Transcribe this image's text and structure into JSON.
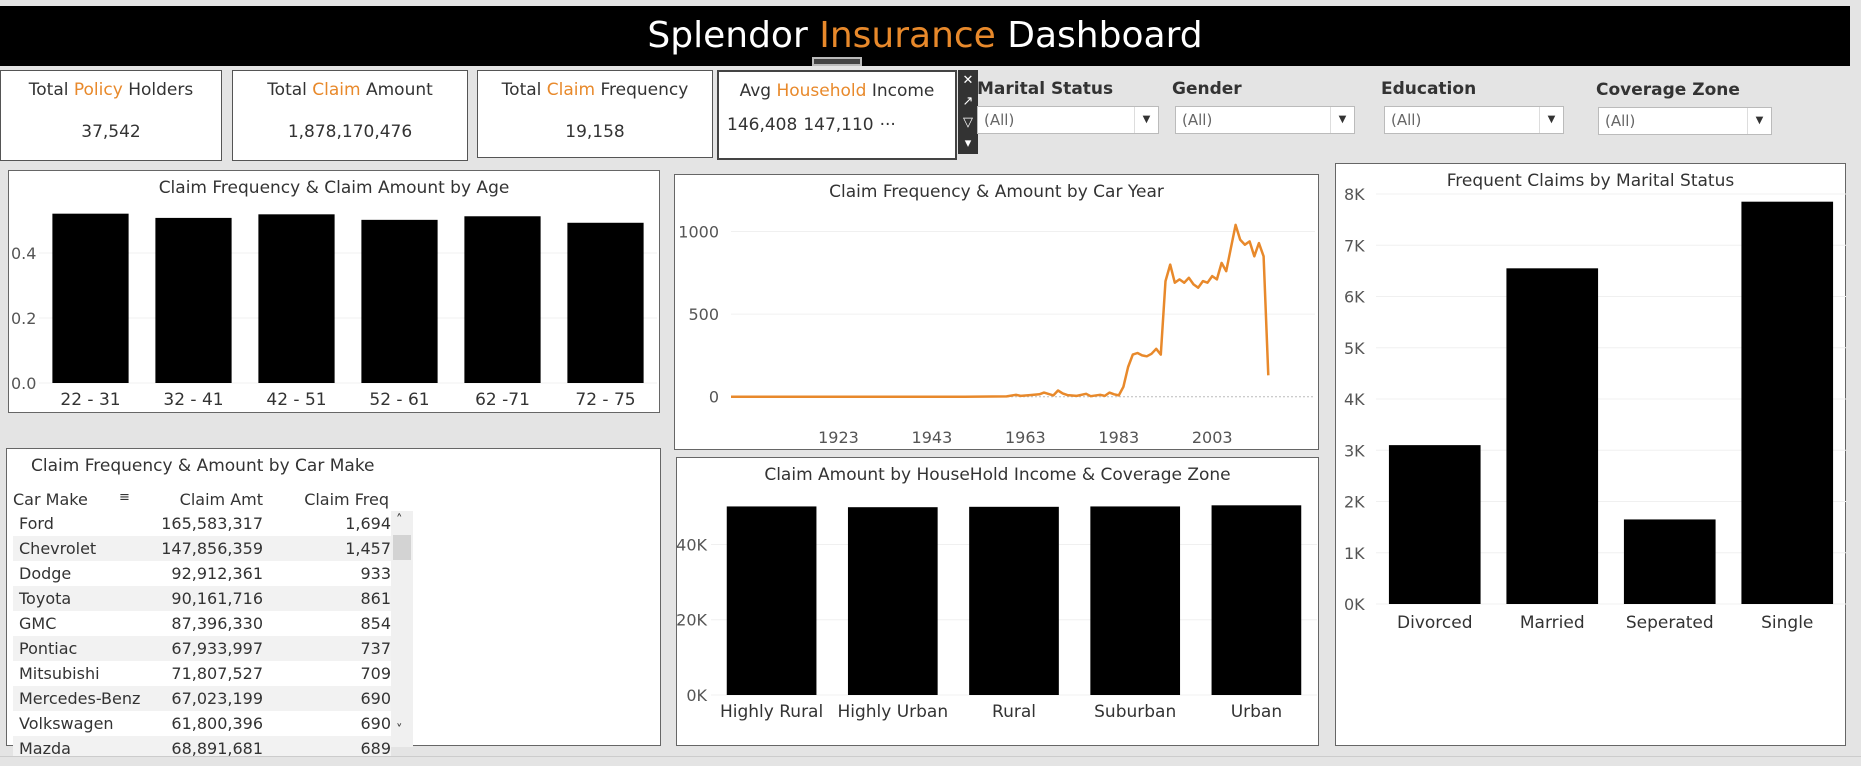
{
  "header": {
    "title_pre": "Splendor ",
    "title_hl": "Insurance",
    "title_post": " Dashboard"
  },
  "kpis": [
    {
      "pre": "Total ",
      "hl": "Policy",
      "post": " Holders",
      "value": "37,542"
    },
    {
      "pre": "Total ",
      "hl": "Claim",
      "post": " Amount",
      "value": "1,878,170,476"
    },
    {
      "pre": "Total ",
      "hl": "Claim",
      "post": " Frequency",
      "value": "19,158"
    }
  ],
  "avg_income": {
    "pre": "Avg ",
    "hl": "Household",
    "post": " Income",
    "v1": "146,408",
    "v2": "147,110",
    "more": "···"
  },
  "selection_toolbar": {
    "close": "✕",
    "popout": "↗",
    "filter": "▽",
    "menu": "▾"
  },
  "filters": [
    {
      "label": "Marital Status",
      "value": "(All)"
    },
    {
      "label": "Gender",
      "value": "(All)"
    },
    {
      "label": "Education",
      "value": "(All)"
    },
    {
      "label": "Coverage Zone",
      "value": "(All)"
    }
  ],
  "colors": {
    "accent": "#e8892b",
    "bar": "#000000",
    "title_bg": "#000000"
  },
  "charts": {
    "age": {
      "title": "Claim Frequency & Claim Amount by Age",
      "chart_data": {
        "type": "bar",
        "categories": [
          "22 - 31",
          "32 - 41",
          "42 - 51",
          "52 - 61",
          "62 -71",
          "72 - 75"
        ],
        "values": [
          0.521,
          0.508,
          0.519,
          0.502,
          0.513,
          0.493
        ],
        "yticks": [
          "0.0",
          "0.2",
          "0.4"
        ],
        "ylim": [
          0,
          0.56
        ]
      }
    },
    "car_year": {
      "title": "Claim Frequency & Amount by Car Year",
      "chart_data": {
        "type": "line",
        "color": "#e8892b",
        "xticks": [
          "1923",
          "1943",
          "1963",
          "1983",
          "2003"
        ],
        "yticks": [
          "0",
          "500",
          "1000"
        ],
        "xlim": [
          1900,
          2025
        ],
        "ylim": [
          -50,
          1100
        ],
        "points": [
          [
            1900,
            0
          ],
          [
            1950,
            0
          ],
          [
            1959,
            2
          ],
          [
            1961,
            12
          ],
          [
            1962,
            5
          ],
          [
            1964,
            10
          ],
          [
            1966,
            15
          ],
          [
            1967,
            25
          ],
          [
            1969,
            8
          ],
          [
            1970,
            38
          ],
          [
            1971,
            20
          ],
          [
            1972,
            10
          ],
          [
            1974,
            5
          ],
          [
            1976,
            18
          ],
          [
            1977,
            3
          ],
          [
            1979,
            12
          ],
          [
            1980,
            5
          ],
          [
            1981,
            25
          ],
          [
            1982,
            15
          ],
          [
            1983,
            8
          ],
          [
            1984,
            60
          ],
          [
            1985,
            180
          ],
          [
            1986,
            255
          ],
          [
            1987,
            265
          ],
          [
            1988,
            250
          ],
          [
            1989,
            245
          ],
          [
            1990,
            260
          ],
          [
            1991,
            290
          ],
          [
            1992,
            255
          ],
          [
            1993,
            700
          ],
          [
            1994,
            800
          ],
          [
            1995,
            690
          ],
          [
            1996,
            710
          ],
          [
            1997,
            690
          ],
          [
            1998,
            720
          ],
          [
            1999,
            680
          ],
          [
            2000,
            660
          ],
          [
            2001,
            700
          ],
          [
            2002,
            690
          ],
          [
            2003,
            730
          ],
          [
            2004,
            710
          ],
          [
            2005,
            810
          ],
          [
            2006,
            760
          ],
          [
            2007,
            900
          ],
          [
            2008,
            1040
          ],
          [
            2009,
            950
          ],
          [
            2010,
            920
          ],
          [
            2011,
            940
          ],
          [
            2012,
            850
          ],
          [
            2013,
            930
          ],
          [
            2014,
            850
          ],
          [
            2015,
            130
          ]
        ]
      }
    },
    "coverage": {
      "title": "Claim Amount by HouseHold Income & Coverage Zone",
      "chart_data": {
        "type": "bar",
        "categories": [
          "Highly Rural",
          "Highly Urban",
          "Rural",
          "Suburban",
          "Urban"
        ],
        "values": [
          50100,
          49900,
          50000,
          50100,
          50400
        ],
        "yticks": [
          "0K",
          "20K",
          "40K"
        ],
        "ylim": [
          0,
          55000
        ]
      }
    },
    "marital": {
      "title": "Frequent Claims by Marital Status",
      "chart_data": {
        "type": "bar",
        "categories": [
          "Divorced",
          "Married",
          "Seperated",
          "Single"
        ],
        "values": [
          3100,
          6550,
          1650,
          7850
        ],
        "yticks": [
          "0K",
          "1K",
          "2K",
          "3K",
          "4K",
          "5K",
          "6K",
          "7K",
          "8K"
        ],
        "ylim": [
          0,
          8000
        ]
      }
    }
  },
  "car_make_table": {
    "title": "Claim Frequency & Amount by Car Make",
    "headers": [
      "Car Make",
      "Claim Amt",
      "Claim Freq"
    ],
    "sort_icon": "≡",
    "scroll_up": "˄",
    "scroll_down": "˅",
    "rows": [
      [
        "Ford",
        "165,583,317",
        "1,694"
      ],
      [
        "Chevrolet",
        "147,856,359",
        "1,457"
      ],
      [
        "Dodge",
        "92,912,361",
        "933"
      ],
      [
        "Toyota",
        "90,161,716",
        "861"
      ],
      [
        "GMC",
        "87,396,330",
        "854"
      ],
      [
        "Pontiac",
        "67,933,997",
        "737"
      ],
      [
        "Mitsubishi",
        "71,807,527",
        "709"
      ],
      [
        "Mercedes-Benz",
        "67,023,199",
        "690"
      ],
      [
        "Volkswagen",
        "61,800,396",
        "690"
      ],
      [
        "Mazda",
        "68,891,681",
        "689"
      ]
    ]
  }
}
